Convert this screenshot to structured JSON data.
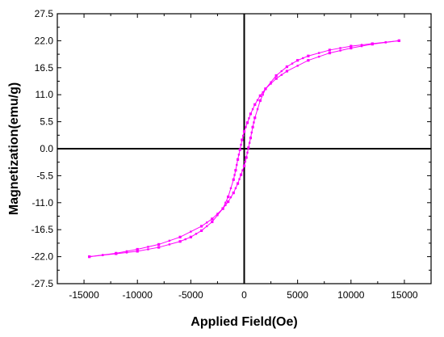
{
  "chart_data": {
    "type": "scatter",
    "xlabel": "Applied Field(Oe)",
    "ylabel": "Magnetization(emu/g)",
    "xlim": [
      -17500,
      17500
    ],
    "ylim": [
      -27.5,
      27.5
    ],
    "x_ticks": [
      -15000,
      -10000,
      -5000,
      0,
      5000,
      10000,
      15000
    ],
    "x_tick_labels": [
      "-15000",
      "-10000",
      "-5000",
      "0",
      "5000",
      "10000",
      "15000"
    ],
    "y_ticks": [
      -27.5,
      -22.0,
      -16.5,
      -11.0,
      -5.5,
      0.0,
      5.5,
      11.0,
      16.5,
      22.0,
      27.5
    ],
    "y_tick_labels": [
      "-27.5",
      "-22.0",
      "-16.5",
      "-11.0",
      "-5.5",
      "0.0",
      "5.5",
      "11.0",
      "16.5",
      "22.0",
      "27.5"
    ],
    "zero_lines": true,
    "grid": false,
    "marker_color": "#ff00ff",
    "line_color": "#ff00ff",
    "series": [
      {
        "branch": "descending",
        "x": [
          14500,
          12000,
          10000,
          8000,
          6000,
          4000,
          3000,
          2000,
          1500,
          1000,
          600,
          300,
          0,
          -200,
          -400,
          -600,
          -800,
          -1000,
          -1500,
          -2000,
          -3000,
          -4000,
          -5000,
          -6000,
          -8000,
          -10000,
          -12000,
          -14500
        ],
        "y": [
          22.0,
          21.3,
          20.5,
          19.5,
          18.0,
          15.8,
          14.3,
          12.2,
          10.8,
          9.0,
          7.1,
          5.3,
          3.5,
          1.8,
          -0.2,
          -2.2,
          -4.4,
          -6.3,
          -9.8,
          -12.2,
          -14.9,
          -16.7,
          -18.0,
          -18.9,
          -20.1,
          -20.9,
          -21.4,
          -22.0
        ]
      },
      {
        "branch": "ascending",
        "x": [
          -14500,
          -12000,
          -10000,
          -8000,
          -6000,
          -4000,
          -3000,
          -2000,
          -1500,
          -1000,
          -600,
          -300,
          0,
          200,
          400,
          600,
          800,
          1000,
          1500,
          2000,
          3000,
          4000,
          5000,
          6000,
          8000,
          10000,
          12000,
          14500
        ],
        "y": [
          -22.0,
          -21.3,
          -20.5,
          -19.5,
          -18.0,
          -15.8,
          -14.3,
          -12.2,
          -10.8,
          -9.0,
          -7.1,
          -5.3,
          -3.5,
          -1.8,
          0.2,
          2.2,
          4.4,
          6.3,
          9.8,
          12.2,
          14.9,
          16.7,
          18.0,
          18.9,
          20.1,
          20.9,
          21.4,
          22.0
        ]
      }
    ]
  }
}
